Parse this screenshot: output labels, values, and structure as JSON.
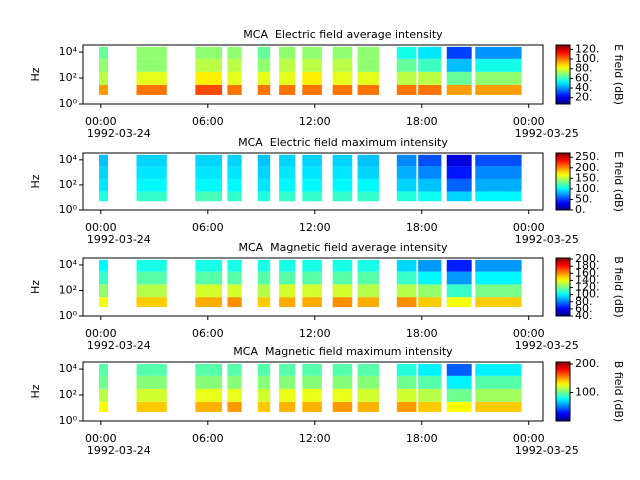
{
  "chart_data": [
    {
      "type": "heatmap",
      "title": "MCA  Electric field average intensity",
      "ylabel": "Hz",
      "colormap": "jet",
      "log_y": true,
      "xlim": [
        -1,
        24.8
      ],
      "xticks": [
        {
          "value": 0,
          "label": "00:00"
        },
        {
          "value": 6,
          "label": "06:00"
        },
        {
          "value": 12,
          "label": "12:00"
        },
        {
          "value": 18,
          "label": "18:00"
        },
        {
          "value": 24,
          "label": "00:00"
        }
      ],
      "xtick_dates": [
        "1992-03-24",
        null,
        null,
        null,
        "1992-03-25"
      ],
      "ylim": [
        1,
        35000
      ],
      "yticks": [
        {
          "value": 1,
          "label": "10⁰"
        },
        {
          "value": 100,
          "label": "10²"
        },
        {
          "value": 10000,
          "label": "10⁴"
        }
      ],
      "y_bins": [
        5,
        30,
        300,
        3000,
        25000
      ],
      "segments": [
        [
          -0.1,
          0.4
        ],
        [
          2.0,
          3.7
        ],
        [
          5.3,
          6.8
        ],
        [
          7.1,
          7.9
        ],
        [
          8.8,
          9.5
        ],
        [
          10.0,
          10.9
        ],
        [
          11.3,
          12.4
        ],
        [
          13.0,
          14.1
        ],
        [
          14.4,
          15.6
        ],
        [
          16.6,
          17.7
        ],
        [
          17.8,
          19.1
        ],
        [
          19.4,
          20.8
        ],
        [
          21.0,
          23.6
        ]
      ],
      "z": [
        [
          95,
          75,
          70,
          65
        ],
        [
          100,
          80,
          70,
          70
        ],
        [
          105,
          85,
          75,
          70
        ],
        [
          100,
          80,
          75,
          70
        ],
        [
          100,
          80,
          70,
          65
        ],
        [
          100,
          80,
          75,
          70
        ],
        [
          100,
          85,
          75,
          70
        ],
        [
          100,
          80,
          75,
          70
        ],
        [
          100,
          80,
          70,
          70
        ],
        [
          100,
          75,
          65,
          55
        ],
        [
          100,
          75,
          60,
          50
        ],
        [
          95,
          65,
          45,
          30
        ],
        [
          95,
          70,
          55,
          40
        ]
      ],
      "clim": [
        7,
        129
      ],
      "cticks": [
        {
          "value": 20,
          "label": "20."
        },
        {
          "value": 40,
          "label": "40."
        },
        {
          "value": 60,
          "label": "60."
        },
        {
          "value": 80,
          "label": "80."
        },
        {
          "value": 100,
          "label": "100."
        },
        {
          "value": 120,
          "label": "120."
        }
      ],
      "clabel": "E field (dB)"
    },
    {
      "type": "heatmap",
      "title": "MCA  Electric field maximum intensity",
      "ylabel": "Hz",
      "colormap": "jet",
      "log_y": true,
      "xlim": [
        -1,
        24.8
      ],
      "xticks": [
        {
          "value": 0,
          "label": "00:00"
        },
        {
          "value": 6,
          "label": "06:00"
        },
        {
          "value": 12,
          "label": "12:00"
        },
        {
          "value": 18,
          "label": "18:00"
        },
        {
          "value": 24,
          "label": "00:00"
        }
      ],
      "xtick_dates": [
        "1992-03-24",
        null,
        null,
        null,
        "1992-03-25"
      ],
      "ylim": [
        1,
        35000
      ],
      "yticks": [
        {
          "value": 1,
          "label": "10⁰"
        },
        {
          "value": 100,
          "label": "10²"
        },
        {
          "value": 10000,
          "label": "10⁴"
        }
      ],
      "y_bins": [
        5,
        30,
        300,
        3000,
        25000
      ],
      "segments": [
        [
          -0.1,
          0.4
        ],
        [
          2.0,
          3.7
        ],
        [
          5.3,
          6.8
        ],
        [
          7.1,
          7.9
        ],
        [
          8.8,
          9.5
        ],
        [
          10.0,
          10.9
        ],
        [
          11.3,
          12.4
        ],
        [
          13.0,
          14.1
        ],
        [
          14.4,
          15.6
        ],
        [
          16.6,
          17.7
        ],
        [
          17.8,
          19.1
        ],
        [
          19.4,
          20.8
        ],
        [
          21.0,
          23.6
        ]
      ],
      "z": [
        [
          110,
          95,
          90,
          85
        ],
        [
          115,
          100,
          95,
          90
        ],
        [
          120,
          100,
          95,
          90
        ],
        [
          115,
          100,
          95,
          90
        ],
        [
          110,
          95,
          90,
          85
        ],
        [
          115,
          100,
          95,
          90
        ],
        [
          115,
          100,
          95,
          90
        ],
        [
          115,
          100,
          95,
          90
        ],
        [
          115,
          100,
          90,
          85
        ],
        [
          110,
          90,
          80,
          70
        ],
        [
          105,
          85,
          70,
          55
        ],
        [
          90,
          60,
          40,
          25
        ],
        [
          100,
          80,
          70,
          55
        ]
      ],
      "clim": [
        0,
        270
      ],
      "cticks": [
        {
          "value": 0,
          "label": "0."
        },
        {
          "value": 50,
          "label": "50."
        },
        {
          "value": 100,
          "label": "100."
        },
        {
          "value": 150,
          "label": "150."
        },
        {
          "value": 200,
          "label": "200."
        },
        {
          "value": 250,
          "label": "250."
        }
      ],
      "clabel": "E field (dB)"
    },
    {
      "type": "heatmap",
      "title": "MCA  Magnetic field average intensity",
      "ylabel": "Hz",
      "colormap": "jet",
      "log_y": true,
      "xlim": [
        -1,
        24.8
      ],
      "xticks": [
        {
          "value": 0,
          "label": "00:00"
        },
        {
          "value": 6,
          "label": "06:00"
        },
        {
          "value": 12,
          "label": "12:00"
        },
        {
          "value": 18,
          "label": "18:00"
        },
        {
          "value": 24,
          "label": "00:00"
        }
      ],
      "xtick_dates": [
        "1992-03-24",
        null,
        null,
        null,
        "1992-03-25"
      ],
      "ylim": [
        1,
        35000
      ],
      "yticks": [
        {
          "value": 1,
          "label": "10⁰"
        },
        {
          "value": 100,
          "label": "10²"
        },
        {
          "value": 10000,
          "label": "10⁴"
        }
      ],
      "y_bins": [
        5,
        30,
        300,
        3000,
        25000
      ],
      "segments": [
        [
          -0.1,
          0.4
        ],
        [
          2.0,
          3.7
        ],
        [
          5.3,
          6.8
        ],
        [
          7.1,
          7.9
        ],
        [
          8.8,
          9.5
        ],
        [
          10.0,
          10.9
        ],
        [
          11.3,
          12.4
        ],
        [
          13.0,
          14.1
        ],
        [
          14.4,
          15.6
        ],
        [
          16.6,
          17.7
        ],
        [
          17.8,
          19.1
        ],
        [
          19.4,
          20.8
        ],
        [
          21.0,
          23.6
        ]
      ],
      "z": [
        [
          140,
          125,
          110,
          100
        ],
        [
          150,
          130,
          115,
          105
        ],
        [
          155,
          135,
          115,
          105
        ],
        [
          160,
          135,
          115,
          105
        ],
        [
          150,
          130,
          115,
          105
        ],
        [
          155,
          135,
          115,
          105
        ],
        [
          155,
          135,
          115,
          105
        ],
        [
          160,
          135,
          115,
          105
        ],
        [
          155,
          130,
          115,
          105
        ],
        [
          160,
          130,
          110,
          95
        ],
        [
          150,
          125,
          100,
          85
        ],
        [
          140,
          110,
          85,
          65
        ],
        [
          150,
          120,
          100,
          85
        ]
      ],
      "clim": [
        40,
        203
      ],
      "cticks": [
        {
          "value": 40,
          "label": "40."
        },
        {
          "value": 60,
          "label": "60."
        },
        {
          "value": 80,
          "label": "80."
        },
        {
          "value": 100,
          "label": "100."
        },
        {
          "value": 120,
          "label": "120."
        },
        {
          "value": 140,
          "label": "140."
        },
        {
          "value": 160,
          "label": "160."
        },
        {
          "value": 180,
          "label": "180."
        },
        {
          "value": 200,
          "label": "200."
        }
      ],
      "clabel": "B field (dB)"
    },
    {
      "type": "heatmap",
      "title": "MCA  Magnetic field maximum intensity",
      "ylabel": "Hz",
      "colormap": "jet",
      "log_y": true,
      "xlim": [
        -1,
        24.8
      ],
      "xticks": [
        {
          "value": 0,
          "label": "00:00"
        },
        {
          "value": 6,
          "label": "06:00"
        },
        {
          "value": 12,
          "label": "12:00"
        },
        {
          "value": 18,
          "label": "18:00"
        },
        {
          "value": 24,
          "label": "00:00"
        }
      ],
      "xtick_dates": [
        "1992-03-24",
        null,
        null,
        null,
        "1992-03-25"
      ],
      "ylim": [
        1,
        35000
      ],
      "yticks": [
        {
          "value": 1,
          "label": "10⁰"
        },
        {
          "value": 100,
          "label": "10²"
        },
        {
          "value": 10000,
          "label": "10⁴"
        }
      ],
      "y_bins": [
        5,
        30,
        300,
        3000,
        25000
      ],
      "segments": [
        [
          -0.1,
          0.4
        ],
        [
          2.0,
          3.7
        ],
        [
          5.3,
          6.8
        ],
        [
          7.1,
          7.9
        ],
        [
          8.8,
          9.5
        ],
        [
          10.0,
          10.9
        ],
        [
          11.3,
          12.4
        ],
        [
          13.0,
          14.1
        ],
        [
          14.4,
          15.6
        ],
        [
          16.6,
          17.7
        ],
        [
          17.8,
          19.1
        ],
        [
          19.4,
          20.8
        ],
        [
          21.0,
          23.6
        ]
      ],
      "z": [
        [
          130,
          115,
          100,
          95
        ],
        [
          140,
          120,
          105,
          95
        ],
        [
          145,
          125,
          105,
          95
        ],
        [
          150,
          125,
          105,
          95
        ],
        [
          140,
          120,
          105,
          95
        ],
        [
          145,
          125,
          105,
          95
        ],
        [
          145,
          125,
          105,
          95
        ],
        [
          150,
          125,
          105,
          95
        ],
        [
          145,
          120,
          105,
          95
        ],
        [
          150,
          120,
          100,
          85
        ],
        [
          140,
          115,
          95,
          75
        ],
        [
          130,
          100,
          75,
          45
        ],
        [
          140,
          110,
          95,
          75
        ]
      ],
      "clim": [
        0,
        207
      ],
      "cticks": [
        {
          "value": 100,
          "label": "100."
        },
        {
          "value": 200,
          "label": "200."
        }
      ],
      "clabel": "B field (dB)"
    }
  ]
}
